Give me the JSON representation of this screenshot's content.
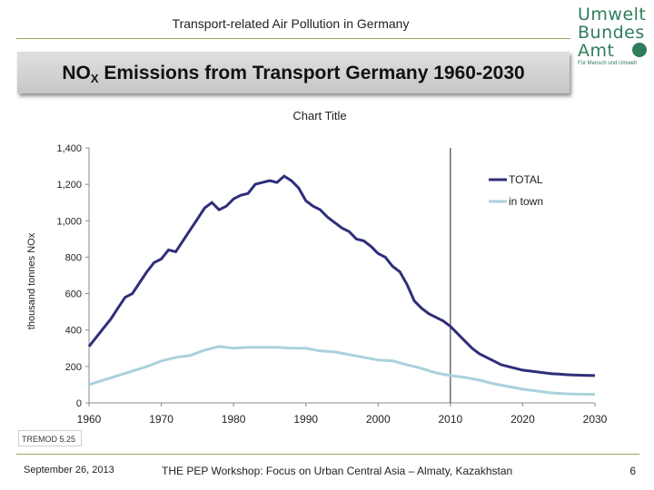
{
  "header": {
    "title": "Transport-related Air Pollution in Germany",
    "logo_lines": [
      "Umwelt",
      "Bundes",
      "Amt"
    ],
    "logo_tagline": "Für Mensch und Umwelt"
  },
  "banner": {
    "prefix": "NO",
    "subscript": "X",
    "suffix": " Emissions from Transport Germany 1960-2030"
  },
  "source_badge": "TREMOD 5.25",
  "footer": {
    "date": "September 26, 2013",
    "event": "THE PEP Workshop: Focus on Urban Central Asia – Almaty, Kazakhstan",
    "page": "6"
  },
  "colors": {
    "total": "#2e2e7a",
    "in_town": "#a9d2dc",
    "accent_rule": "#9aa55a"
  },
  "chart_data": {
    "type": "line",
    "title": "Chart Title",
    "xlabel": "",
    "ylabel": "thousand tonnes NOx",
    "xlim": [
      1960,
      2030
    ],
    "ylim": [
      0,
      1400
    ],
    "x_ticks": [
      "1960",
      "1970",
      "1980",
      "1990",
      "2000",
      "2010",
      "2020",
      "2030"
    ],
    "y_ticks": [
      "0",
      "200",
      "400",
      "600",
      "800",
      "1,000",
      "1,200",
      "1,400"
    ],
    "reference_line_x": 2010,
    "legend_position": "top-right",
    "grid": false,
    "series": [
      {
        "name": "TOTAL",
        "x": [
          1960,
          1961,
          1962,
          1963,
          1964,
          1965,
          1966,
          1967,
          1968,
          1969,
          1970,
          1971,
          1972,
          1973,
          1974,
          1975,
          1976,
          1977,
          1978,
          1979,
          1980,
          1981,
          1982,
          1983,
          1984,
          1985,
          1986,
          1987,
          1988,
          1989,
          1990,
          1991,
          1992,
          1993,
          1994,
          1995,
          1996,
          1997,
          1998,
          1999,
          2000,
          2001,
          2002,
          2003,
          2004,
          2005,
          2006,
          2007,
          2008,
          2009,
          2010,
          2011,
          2012,
          2013,
          2014,
          2015,
          2016,
          2017,
          2018,
          2019,
          2020,
          2021,
          2022,
          2023,
          2024,
          2025,
          2026,
          2027,
          2028,
          2029,
          2030
        ],
        "values": [
          310,
          360,
          410,
          460,
          520,
          580,
          600,
          660,
          720,
          770,
          790,
          840,
          830,
          890,
          950,
          1010,
          1070,
          1100,
          1060,
          1080,
          1120,
          1140,
          1150,
          1200,
          1210,
          1220,
          1210,
          1245,
          1220,
          1180,
          1110,
          1080,
          1060,
          1020,
          990,
          960,
          940,
          900,
          890,
          860,
          820,
          800,
          750,
          720,
          650,
          560,
          520,
          490,
          470,
          450,
          420,
          380,
          340,
          300,
          270,
          250,
          230,
          210,
          200,
          190,
          180,
          175,
          170,
          165,
          160,
          158,
          155,
          153,
          152,
          151,
          150
        ]
      },
      {
        "name": "in town",
        "x": [
          1960,
          1962,
          1964,
          1966,
          1968,
          1970,
          1972,
          1974,
          1976,
          1978,
          1980,
          1982,
          1984,
          1986,
          1988,
          1990,
          1992,
          1994,
          1996,
          1998,
          2000,
          2002,
          2004,
          2006,
          2008,
          2010,
          2012,
          2014,
          2016,
          2018,
          2020,
          2022,
          2024,
          2026,
          2028,
          2030
        ],
        "values": [
          100,
          125,
          150,
          175,
          200,
          230,
          250,
          260,
          290,
          310,
          300,
          305,
          305,
          305,
          300,
          300,
          285,
          280,
          265,
          250,
          235,
          230,
          210,
          190,
          165,
          150,
          140,
          125,
          105,
          90,
          75,
          65,
          55,
          50,
          48,
          47
        ]
      }
    ]
  }
}
